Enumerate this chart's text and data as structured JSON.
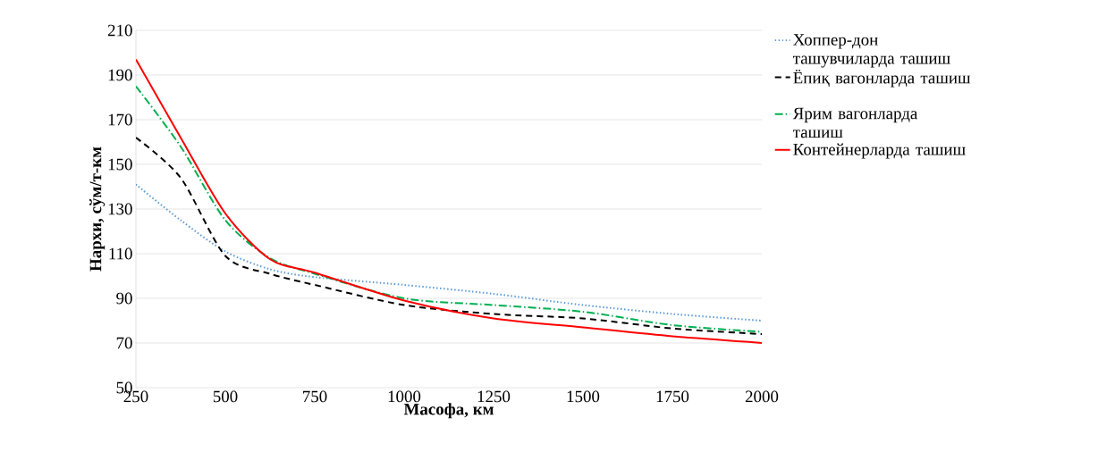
{
  "chart_data": {
    "type": "line",
    "xlabel": "Масофа, км",
    "ylabel": "Нархи, сўм/т-км",
    "x": [
      250,
      375,
      500,
      625,
      750,
      1000,
      1250,
      1500,
      1750,
      2000
    ],
    "series": [
      {
        "name": "Хоппер-дон ташувчиларда ташиш",
        "color": "#5b9bd5",
        "line_style": "dotted",
        "values": [
          141,
          125,
          111,
          103,
          99.5,
          96,
          92,
          87,
          83,
          80
        ]
      },
      {
        "name": "Ёпиқ вагонларда ташиш",
        "color": "#000000",
        "line_style": "dashed",
        "values": [
          162,
          144,
          109,
          101,
          96,
          87,
          83,
          81,
          76.5,
          74
        ]
      },
      {
        "name": "Ярим вагонларда ташиш",
        "color": "#00b050",
        "line_style": "dashdot",
        "values": [
          185,
          158,
          125,
          108,
          101,
          90,
          87,
          84,
          78,
          75
        ]
      },
      {
        "name": "Контейнерларда ташиш",
        "color": "#ff0000",
        "line_style": "solid",
        "values": [
          197,
          162,
          128,
          107.5,
          101.5,
          89,
          81,
          77,
          73,
          70
        ]
      }
    ],
    "xlim": [
      250,
      2000
    ],
    "xticks": [
      250,
      500,
      750,
      1000,
      1250,
      1500,
      1750,
      2000
    ],
    "ylim": [
      50,
      210
    ],
    "yticks": [
      50,
      70,
      90,
      110,
      130,
      150,
      170,
      190,
      210
    ],
    "grid": "y",
    "legend": "right",
    "marker": "none"
  }
}
